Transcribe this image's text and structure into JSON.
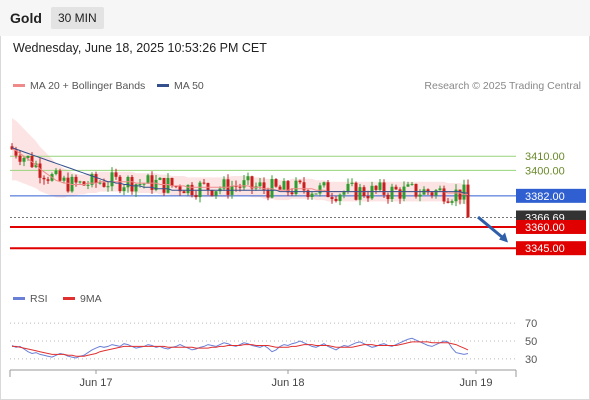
{
  "header": {
    "symbol": "Gold",
    "timeframe": "30 MIN",
    "datetime": "Wednesday, June 18, 2025 10:53:26 PM CET"
  },
  "legend": {
    "ma20_label": "MA 20 + Bollinger Bands",
    "ma50_label": "MA 50",
    "credit": "Research © 2025 Trading Central",
    "rsi_label": "RSI",
    "nine_ma_label": "9MA"
  },
  "colors": {
    "up_candle": "#2e9d2e",
    "down_candle": "#c81e1e",
    "bollinger_fill": "#fde4e4",
    "ma20": "#f08a8a",
    "ma50": "#33508c",
    "support": "#e00000",
    "resistance": "#98d47a",
    "pivot": "#2f5fd0",
    "rsi": "#6a7fd6",
    "rsi_ma": "#e03030",
    "arrow": "#2f5fa8"
  },
  "chart_data": [
    {
      "type": "candlestick",
      "ylim": [
        3331,
        3437
      ],
      "x_ticks": [
        {
          "label": "Jun 17",
          "bar": 21
        },
        {
          "label": "Jun 18",
          "bar": 69
        },
        {
          "label": "Jun 19",
          "bar": 116
        }
      ],
      "levels": [
        {
          "value": 3410.0,
          "label": "3410.00",
          "kind": "resistance"
        },
        {
          "value": 3400.0,
          "label": "3400.00",
          "kind": "resistance"
        },
        {
          "value": 3382.0,
          "label": "3382.00",
          "kind": "pivot"
        },
        {
          "value": 3366.69,
          "label": "3366.69",
          "kind": "last"
        },
        {
          "value": 3360.0,
          "label": "3360.00",
          "kind": "support"
        },
        {
          "value": 3345.0,
          "label": "3345.00",
          "kind": "support"
        }
      ],
      "forecast_arrow": {
        "from": 3367,
        "to": 3349
      },
      "series": [
        {
          "name": "MA 20",
          "type": "line",
          "values": [
            3415,
            3414,
            3412,
            3410,
            3408,
            3406,
            3404,
            3401,
            3399,
            3397,
            3395,
            3393,
            3392,
            3391,
            3391,
            3390,
            3390,
            3390,
            3390,
            3391,
            3391,
            3391,
            3392,
            3392,
            3392,
            3392,
            3392,
            3392,
            3392,
            3392,
            3392,
            3391,
            3391,
            3391,
            3391,
            3391,
            3391,
            3390,
            3390,
            3390,
            3389,
            3389,
            3389,
            3389,
            3388,
            3388,
            3388,
            3388,
            3388,
            3388,
            3388,
            3388,
            3388,
            3388,
            3388,
            3389,
            3389,
            3389,
            3389,
            3389,
            3388,
            3388,
            3388,
            3387,
            3387,
            3387,
            3386,
            3386,
            3386,
            3386,
            3387,
            3387,
            3387,
            3387,
            3387,
            3387,
            3386,
            3386,
            3386,
            3385,
            3385,
            3385,
            3385,
            3385,
            3385,
            3385,
            3385,
            3385,
            3385,
            3385,
            3385,
            3385,
            3385,
            3385,
            3385,
            3385,
            3385,
            3385,
            3385,
            3385,
            3385,
            3385,
            3385,
            3385,
            3385,
            3385,
            3385,
            3385,
            3385,
            3384,
            3384,
            3384,
            3384,
            3383,
            3383
          ]
        },
        {
          "name": "MA 50",
          "type": "line",
          "values": [
            3416,
            3415,
            3414,
            3413,
            3412,
            3411,
            3410,
            3409,
            3408,
            3407,
            3406,
            3405,
            3404,
            3403,
            3402,
            3401,
            3400,
            3399,
            3398,
            3397,
            3396,
            3395,
            3394,
            3393,
            3392,
            3392,
            3391,
            3391,
            3390,
            3390,
            3389,
            3389,
            3389,
            3388,
            3388,
            3388,
            3387,
            3387,
            3387,
            3387,
            3386,
            3386,
            3386,
            3386,
            3386,
            3386,
            3386,
            3386,
            3386,
            3386,
            3386,
            3386,
            3386,
            3386,
            3386,
            3386,
            3386,
            3386,
            3386,
            3386,
            3386,
            3386,
            3386,
            3386,
            3386,
            3386,
            3386,
            3385,
            3385,
            3385,
            3385,
            3385,
            3385,
            3385,
            3385,
            3385,
            3385,
            3385,
            3385,
            3385,
            3385,
            3385,
            3385,
            3385,
            3385,
            3385,
            3385,
            3385,
            3385,
            3385,
            3385,
            3385,
            3385,
            3385,
            3385,
            3385,
            3385,
            3385,
            3385,
            3385,
            3385,
            3385,
            3385,
            3385,
            3385,
            3385,
            3385,
            3385,
            3385,
            3385,
            3385,
            3385,
            3385,
            3384,
            3384
          ]
        }
      ]
    },
    {
      "type": "line",
      "ylim": [
        22,
        78
      ],
      "y_ticks": [
        70,
        50,
        30
      ],
      "series": [
        {
          "name": "RSI",
          "values": [
            45,
            43,
            44,
            41,
            38,
            36,
            37,
            35,
            34,
            33,
            32,
            34,
            36,
            35,
            33,
            32,
            31,
            33,
            34,
            37,
            40,
            42,
            44,
            43,
            44,
            46,
            45,
            44,
            47,
            46,
            44,
            42,
            43,
            44,
            46,
            45,
            43,
            44,
            42,
            41,
            43,
            44,
            46,
            44,
            42,
            40,
            41,
            43,
            44,
            46,
            45,
            44,
            46,
            48,
            47,
            45,
            44,
            46,
            48,
            47,
            45,
            44,
            43,
            45,
            42,
            38,
            40,
            44,
            46,
            45,
            47,
            48,
            50,
            48,
            46,
            44,
            43,
            45,
            47,
            44,
            42,
            40,
            43,
            45,
            44,
            46,
            48,
            49,
            47,
            45,
            43,
            44,
            46,
            47,
            45,
            44,
            46,
            48,
            50,
            52,
            53,
            51,
            49,
            47,
            45,
            44,
            46,
            48,
            50,
            49,
            42,
            37,
            36,
            35,
            36
          ]
        },
        {
          "name": "9MA",
          "values": [
            44,
            44,
            43,
            42,
            41,
            40,
            39,
            38,
            37,
            36,
            35,
            35,
            35,
            35,
            34,
            34,
            33,
            33,
            33,
            34,
            35,
            36,
            38,
            39,
            40,
            41,
            42,
            43,
            44,
            44,
            44,
            44,
            44,
            44,
            44,
            44,
            44,
            44,
            44,
            43,
            43,
            43,
            43,
            43,
            43,
            43,
            42,
            42,
            42,
            42,
            43,
            43,
            44,
            44,
            45,
            45,
            45,
            45,
            46,
            46,
            46,
            45,
            45,
            45,
            45,
            44,
            43,
            43,
            43,
            43,
            44,
            44,
            45,
            46,
            46,
            46,
            45,
            45,
            45,
            45,
            44,
            43,
            43,
            43,
            43,
            43,
            44,
            45,
            46,
            46,
            46,
            45,
            45,
            45,
            45,
            45,
            45,
            46,
            47,
            48,
            49,
            49,
            49,
            49,
            49,
            48,
            48,
            48,
            48,
            48,
            47,
            46,
            44,
            42,
            40
          ]
        }
      ]
    }
  ]
}
